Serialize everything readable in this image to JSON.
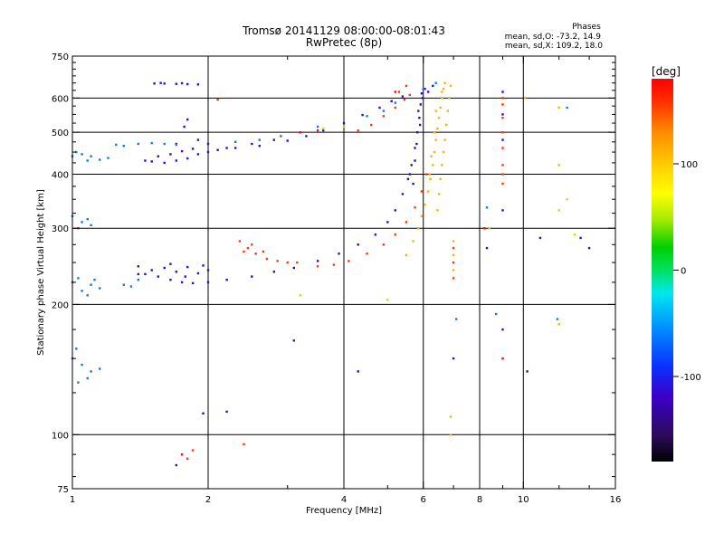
{
  "chart_data": {
    "type": "scatter",
    "title": "Tromsø 20141129 08:00:00-08:01:43",
    "subtitle": "RwPretec (8p)",
    "xlabel": "Frequency [MHz]",
    "ylabel": "Stationary phase Virtual Height [km]",
    "x_scale": "log",
    "y_scale": "log",
    "xlim": [
      1,
      16
    ],
    "ylim": [
      75,
      750
    ],
    "x_ticks": [
      1,
      2,
      4,
      6,
      8,
      10,
      16
    ],
    "x_tick_labels": [
      "1",
      "2",
      "4",
      "6",
      "8",
      "10",
      "16"
    ],
    "y_ticks": [
      75,
      100,
      200,
      300,
      400,
      500,
      600,
      750
    ],
    "y_tick_labels": [
      "75",
      "100",
      "200",
      "300",
      "400",
      "500",
      "600",
      "750"
    ],
    "x_minor_ticks": [
      3,
      5,
      7,
      9,
      12,
      14
    ],
    "y_minor_ticks": [
      80,
      90,
      125,
      150,
      175,
      225,
      250,
      275,
      325,
      350,
      375,
      425,
      450,
      475,
      525,
      550,
      575,
      625,
      650,
      675,
      700,
      725
    ],
    "grid": true,
    "phase_info": {
      "title": "Phases",
      "o_line": "mean, sd,O: -73.2, 14.9",
      "x_line": "mean, sd,X: 109.2, 18.0"
    },
    "colorbar": {
      "label": "[deg]",
      "range": [
        -180,
        180
      ],
      "ticks": [
        100,
        0,
        -100
      ],
      "tick_labels": [
        "100",
        "0",
        "-100"
      ],
      "colors": [
        "#000000",
        "#2e0a5c",
        "#3c00c8",
        "#0a32ff",
        "#0090ff",
        "#00e8f0",
        "#00e060",
        "#00d000",
        "#a0ea00",
        "#ffff00",
        "#ffd000",
        "#ff8c00",
        "#ff3000",
        "#ff0000"
      ]
    },
    "series": [
      {
        "phase": -120,
        "points": [
          [
            1.52,
            648
          ],
          [
            1.6,
            648
          ],
          [
            1.7,
            647
          ],
          [
            1.8,
            646
          ],
          [
            1.9,
            645
          ],
          [
            1.57,
            650
          ],
          [
            1.75,
            649
          ],
          [
            1.45,
            430
          ],
          [
            1.5,
            428
          ],
          [
            1.6,
            425
          ],
          [
            1.7,
            430
          ],
          [
            1.8,
            435
          ],
          [
            1.9,
            445
          ],
          [
            2.0,
            450
          ],
          [
            2.1,
            455
          ],
          [
            2.3,
            460
          ],
          [
            2.6,
            465
          ],
          [
            3.0,
            478
          ],
          [
            3.3,
            490
          ],
          [
            3.6,
            505
          ],
          [
            4.0,
            525
          ],
          [
            4.4,
            548
          ],
          [
            4.8,
            570
          ],
          [
            5.1,
            590
          ],
          [
            5.4,
            605
          ],
          [
            1.55,
            440
          ],
          [
            1.65,
            445
          ],
          [
            1.75,
            452
          ],
          [
            1.85,
            458
          ],
          [
            2.0,
            470
          ],
          [
            1.9,
            480
          ],
          [
            1.7,
            470
          ],
          [
            2.2,
            460
          ],
          [
            2.5,
            470
          ],
          [
            2.8,
            480
          ],
          [
            1.65,
            228
          ],
          [
            1.75,
            225
          ],
          [
            1.85,
            224
          ],
          [
            2.0,
            225
          ],
          [
            2.2,
            228
          ],
          [
            2.5,
            232
          ],
          [
            2.8,
            238
          ],
          [
            3.1,
            243
          ],
          [
            3.5,
            252
          ],
          [
            3.9,
            262
          ],
          [
            4.3,
            275
          ],
          [
            4.7,
            290
          ],
          [
            5.0,
            310
          ],
          [
            5.2,
            330
          ],
          [
            5.4,
            360
          ],
          [
            5.55,
            390
          ],
          [
            5.65,
            420
          ],
          [
            5.75,
            460
          ],
          [
            5.82,
            500
          ],
          [
            5.88,
            540
          ],
          [
            5.92,
            580
          ],
          [
            5.95,
            615
          ],
          [
            1.4,
            245
          ],
          [
            1.5,
            240
          ],
          [
            1.6,
            243
          ],
          [
            1.7,
            238
          ],
          [
            1.8,
            244
          ],
          [
            1.9,
            236
          ],
          [
            2.0,
            240
          ],
          [
            1.45,
            235
          ],
          [
            1.55,
            232
          ],
          [
            1.65,
            248
          ],
          [
            1.78,
            232
          ],
          [
            1.95,
            246
          ],
          [
            5.7,
            380
          ],
          [
            5.6,
            400
          ],
          [
            5.75,
            430
          ],
          [
            5.8,
            470
          ],
          [
            5.9,
            520
          ],
          [
            5.85,
            560
          ],
          [
            5.98,
            600
          ],
          [
            6.05,
            630
          ],
          [
            6.15,
            620
          ],
          [
            6.3,
            640
          ],
          [
            9.0,
            620
          ],
          [
            9.0,
            550
          ],
          [
            9.0,
            480
          ],
          [
            9.0,
            330
          ],
          [
            9.0,
            175
          ],
          [
            8.3,
            270
          ],
          [
            10.9,
            285
          ],
          [
            13.4,
            285
          ],
          [
            14.0,
            270
          ],
          [
            10.2,
            140
          ],
          [
            7.0,
            150
          ],
          [
            4.3,
            140
          ],
          [
            3.1,
            165
          ],
          [
            1.95,
            112
          ],
          [
            2.2,
            113
          ],
          [
            1.7,
            85
          ],
          [
            1.77,
            515
          ],
          [
            1.8,
            535
          ],
          [
            1.4,
            235
          ]
        ]
      },
      {
        "phase": -75,
        "points": [
          [
            1.0,
            440
          ],
          [
            1.05,
            445
          ],
          [
            1.1,
            440
          ],
          [
            1.15,
            432
          ],
          [
            1.2,
            436
          ],
          [
            1.02,
            450
          ],
          [
            1.08,
            430
          ],
          [
            1.0,
            320
          ],
          [
            1.05,
            310
          ],
          [
            1.1,
            305
          ],
          [
            1.03,
            300
          ],
          [
            1.08,
            315
          ],
          [
            1.0,
            225
          ],
          [
            1.05,
            215
          ],
          [
            1.1,
            222
          ],
          [
            1.15,
            218
          ],
          [
            1.03,
            230
          ],
          [
            1.08,
            210
          ],
          [
            1.12,
            228
          ],
          [
            1.0,
            150
          ],
          [
            1.05,
            145
          ],
          [
            1.1,
            140
          ],
          [
            1.15,
            142
          ],
          [
            1.02,
            158
          ],
          [
            1.08,
            135
          ],
          [
            1.03,
            132
          ],
          [
            1.25,
            468
          ],
          [
            1.3,
            465
          ],
          [
            1.4,
            470
          ],
          [
            1.5,
            472
          ],
          [
            1.6,
            470
          ],
          [
            1.7,
            468
          ],
          [
            1.3,
            222
          ],
          [
            1.35,
            220
          ],
          [
            1.4,
            228
          ],
          [
            2.3,
            475
          ],
          [
            2.6,
            480
          ],
          [
            2.9,
            490
          ],
          [
            3.2,
            500
          ],
          [
            3.5,
            515
          ],
          [
            4.5,
            545
          ],
          [
            4.9,
            560
          ],
          [
            5.2,
            585
          ],
          [
            6.0,
            630
          ],
          [
            6.4,
            650
          ],
          [
            8.3,
            335
          ],
          [
            8.7,
            190
          ],
          [
            11.9,
            185
          ],
          [
            12.5,
            570
          ],
          [
            7.1,
            185
          ]
        ]
      },
      {
        "phase": 45,
        "points": [
          [
            8.4,
            300
          ],
          [
            3.2,
            210
          ],
          [
            5.0,
            205
          ],
          [
            3.6,
            510
          ],
          [
            4.0,
            515
          ],
          [
            12.0,
            330
          ],
          [
            12.5,
            350
          ],
          [
            13.0,
            290
          ]
        ]
      },
      {
        "phase": 110,
        "points": [
          [
            5.5,
            260
          ],
          [
            5.7,
            280
          ],
          [
            5.85,
            300
          ],
          [
            5.95,
            320
          ],
          [
            6.05,
            340
          ],
          [
            6.15,
            365
          ],
          [
            6.22,
            390
          ],
          [
            6.3,
            420
          ],
          [
            6.35,
            450
          ],
          [
            6.4,
            480
          ],
          [
            6.45,
            510
          ],
          [
            6.5,
            540
          ],
          [
            6.55,
            570
          ],
          [
            6.6,
            600
          ],
          [
            6.65,
            630
          ],
          [
            6.7,
            650
          ],
          [
            6.45,
            330
          ],
          [
            6.5,
            360
          ],
          [
            6.55,
            390
          ],
          [
            6.6,
            420
          ],
          [
            6.65,
            450
          ],
          [
            6.7,
            480
          ],
          [
            6.75,
            520
          ],
          [
            6.8,
            560
          ],
          [
            6.85,
            600
          ],
          [
            6.9,
            640
          ],
          [
            6.2,
            400
          ],
          [
            6.25,
            440
          ],
          [
            6.35,
            500
          ],
          [
            6.4,
            560
          ],
          [
            6.6,
            620
          ],
          [
            12.0,
            570
          ],
          [
            12.0,
            420
          ],
          [
            12.0,
            180
          ],
          [
            7.0,
            240
          ],
          [
            7.0,
            260
          ],
          [
            7.0,
            280
          ],
          [
            6.9,
            100
          ],
          [
            6.9,
            110
          ],
          [
            10.1,
            600
          ]
        ]
      },
      {
        "phase": 150,
        "points": [
          [
            2.35,
            280
          ],
          [
            2.45,
            270
          ],
          [
            2.55,
            262
          ],
          [
            2.7,
            255
          ],
          [
            2.85,
            252
          ],
          [
            3.0,
            250
          ],
          [
            3.15,
            250
          ],
          [
            2.4,
            265
          ],
          [
            2.5,
            275
          ],
          [
            2.65,
            265
          ],
          [
            3.5,
            245
          ],
          [
            3.8,
            247
          ],
          [
            4.1,
            252
          ],
          [
            4.5,
            262
          ],
          [
            4.9,
            275
          ],
          [
            5.2,
            290
          ],
          [
            5.5,
            310
          ],
          [
            5.75,
            335
          ],
          [
            5.95,
            365
          ],
          [
            6.1,
            400
          ],
          [
            4.3,
            505
          ],
          [
            4.6,
            520
          ],
          [
            4.9,
            545
          ],
          [
            5.2,
            570
          ],
          [
            5.45,
            595
          ],
          [
            5.6,
            610
          ],
          [
            5.3,
            620
          ],
          [
            5.5,
            640
          ],
          [
            9.0,
            380
          ],
          [
            9.0,
            400
          ],
          [
            9.0,
            420
          ],
          [
            9.0,
            460
          ],
          [
            9.0,
            500
          ],
          [
            9.0,
            540
          ],
          [
            9.0,
            580
          ],
          [
            9.0,
            600
          ],
          [
            2.1,
            595
          ],
          [
            1.8,
            88
          ],
          [
            1.85,
            92
          ],
          [
            2.4,
            95
          ],
          [
            7.0,
            230
          ],
          [
            7.0,
            250
          ],
          [
            7.0,
            270
          ]
        ]
      },
      {
        "phase": 175,
        "points": [
          [
            3.2,
            500
          ],
          [
            3.5,
            505
          ],
          [
            9.0,
            150
          ],
          [
            8.2,
            300
          ],
          [
            5.2,
            620
          ],
          [
            1.75,
            90
          ]
        ]
      }
    ]
  }
}
